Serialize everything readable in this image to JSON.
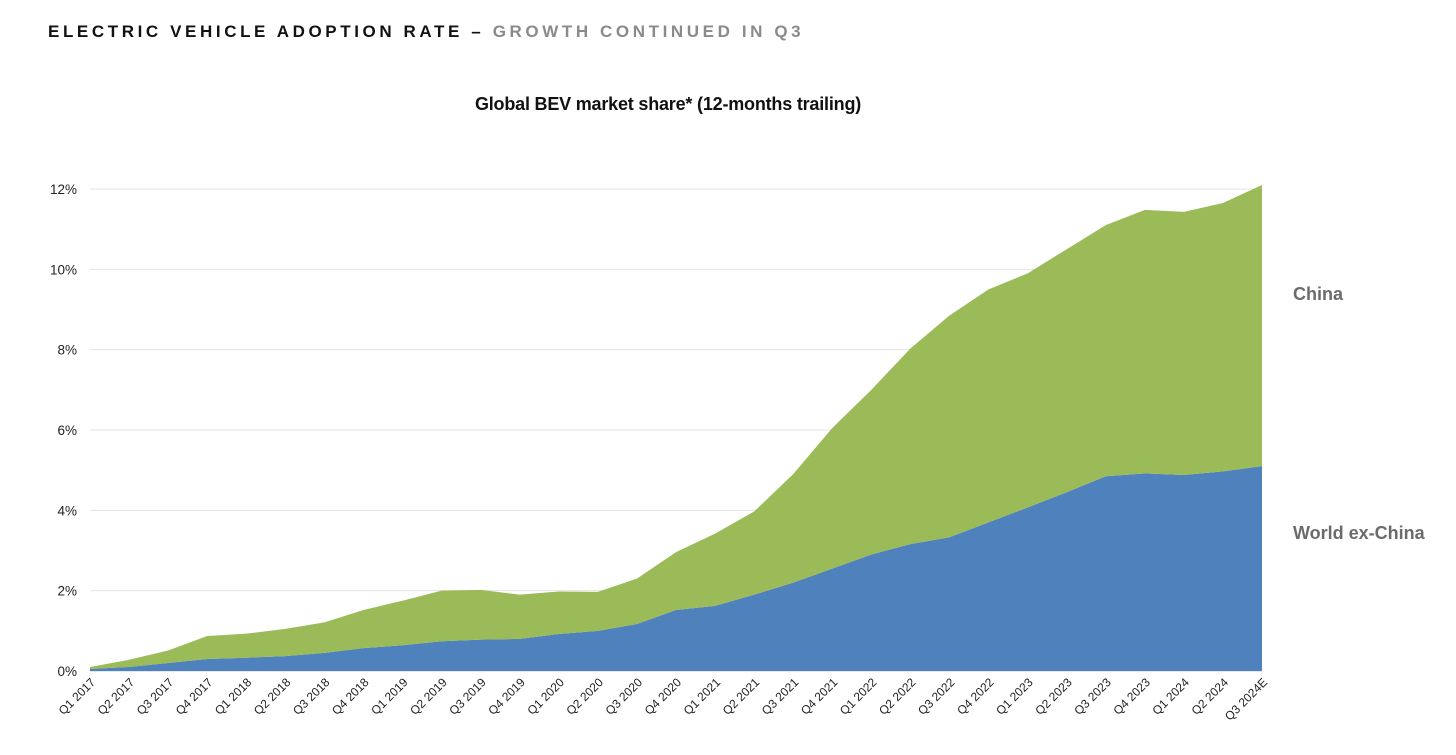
{
  "header": {
    "title_main": "ELECTRIC VEHICLE ADOPTION RATE",
    "title_separator": "–",
    "title_highlight": "GROWTH CONTINUED IN Q3"
  },
  "colors": {
    "china": "#9BBB59",
    "world_ex_china": "#4F81BD",
    "gridline": "#e3e3e3",
    "axis_text": "#222222",
    "legend_text": "#6b6b6b"
  },
  "chart_data": {
    "type": "area",
    "stacked": true,
    "title": "Global BEV market share* (12-months trailing)",
    "xlabel": "",
    "ylabel": "",
    "ylim": [
      0,
      12
    ],
    "y_ticks": [
      0,
      2,
      4,
      6,
      8,
      10,
      12
    ],
    "y_tick_labels": [
      "0%",
      "2%",
      "4%",
      "6%",
      "8%",
      "10%",
      "12%"
    ],
    "grid": true,
    "categories": [
      "Q1 2017",
      "Q2 2017",
      "Q3 2017",
      "Q4 2017",
      "Q1 2018",
      "Q2 2018",
      "Q3 2018",
      "Q4 2018",
      "Q1 2019",
      "Q2 2019",
      "Q3 2019",
      "Q4 2019",
      "Q1 2020",
      "Q2 2020",
      "Q3 2020",
      "Q4 2020",
      "Q1 2021",
      "Q2 2021",
      "Q3 2021",
      "Q4 2021",
      "Q1 2022",
      "Q2 2022",
      "Q3 2022",
      "Q4 2022",
      "Q1 2023",
      "Q2 2023",
      "Q3 2023",
      "Q4 2023",
      "Q1 2024",
      "Q2 2024",
      "Q3 2024E"
    ],
    "series": [
      {
        "name": "World ex-China",
        "values": [
          0.05,
          0.1,
          0.2,
          0.3,
          0.33,
          0.37,
          0.45,
          0.57,
          0.64,
          0.74,
          0.78,
          0.8,
          0.92,
          1.0,
          1.17,
          1.52,
          1.62,
          1.9,
          2.2,
          2.55,
          2.9,
          3.16,
          3.33,
          3.7,
          4.07,
          4.45,
          4.85,
          4.92,
          4.88,
          4.97,
          5.1
        ]
      },
      {
        "name": "China",
        "values": [
          0.05,
          0.18,
          0.31,
          0.57,
          0.6,
          0.68,
          0.76,
          0.95,
          1.11,
          1.26,
          1.24,
          1.1,
          1.06,
          0.97,
          1.13,
          1.44,
          1.8,
          2.07,
          2.7,
          3.5,
          4.1,
          4.87,
          5.52,
          5.8,
          5.83,
          6.05,
          6.25,
          6.56,
          6.55,
          6.68,
          7.0
        ]
      }
    ],
    "legend": [
      "China",
      "World ex-China"
    ],
    "legend_placement": "right, inline beside series"
  }
}
